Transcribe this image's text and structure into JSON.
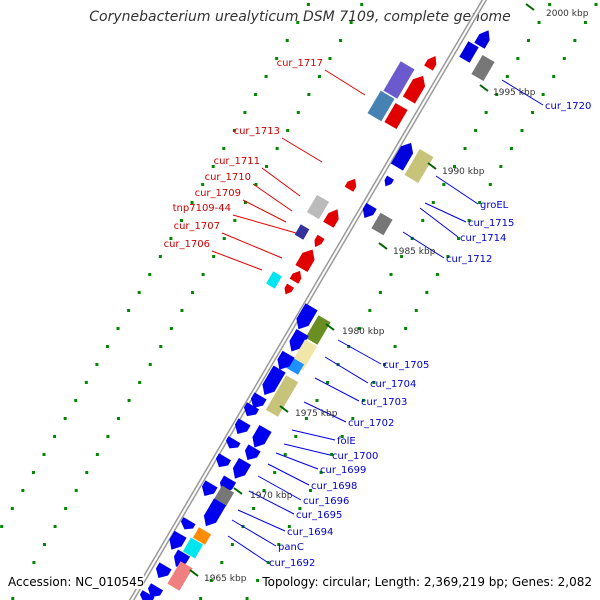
{
  "title": "Corynebacterium urealyticum DSM 7109, complete genome",
  "footer": {
    "accession": "Accession: NC_010545",
    "topology": "Topology: circular; Length: 2,369,219 bp; Genes: 2,082"
  },
  "colors": {
    "forward_left": "#e00000",
    "reverse_right": "#0000dd",
    "backbone": "#999999",
    "tick_dots": "#008800",
    "kbp_marks": "#006600"
  },
  "kbp_labels": [
    "2000 kbp",
    "1995 kbp",
    "1990 kbp",
    "1985 kbp",
    "1980 kbp",
    "1975 kbp",
    "1970 kbp",
    "1965 kbp"
  ],
  "left_genes": [
    "cur_1717",
    "cur_1713",
    "cur_1711",
    "cur_1710",
    "cur_1709",
    "tnp7109-44",
    "cur_1707",
    "cur_1706"
  ],
  "right_genes": [
    "cur_1720",
    "groEL",
    "cur_1715",
    "cur_1714",
    "cur_1712",
    "cur_1705",
    "cur_1704",
    "cur_1703",
    "cur_1702",
    "folE",
    "cur_1700",
    "cur_1699",
    "cur_1698",
    "cur_1696",
    "cur_1695",
    "cur_1694",
    "panC",
    "cur_1692"
  ]
}
